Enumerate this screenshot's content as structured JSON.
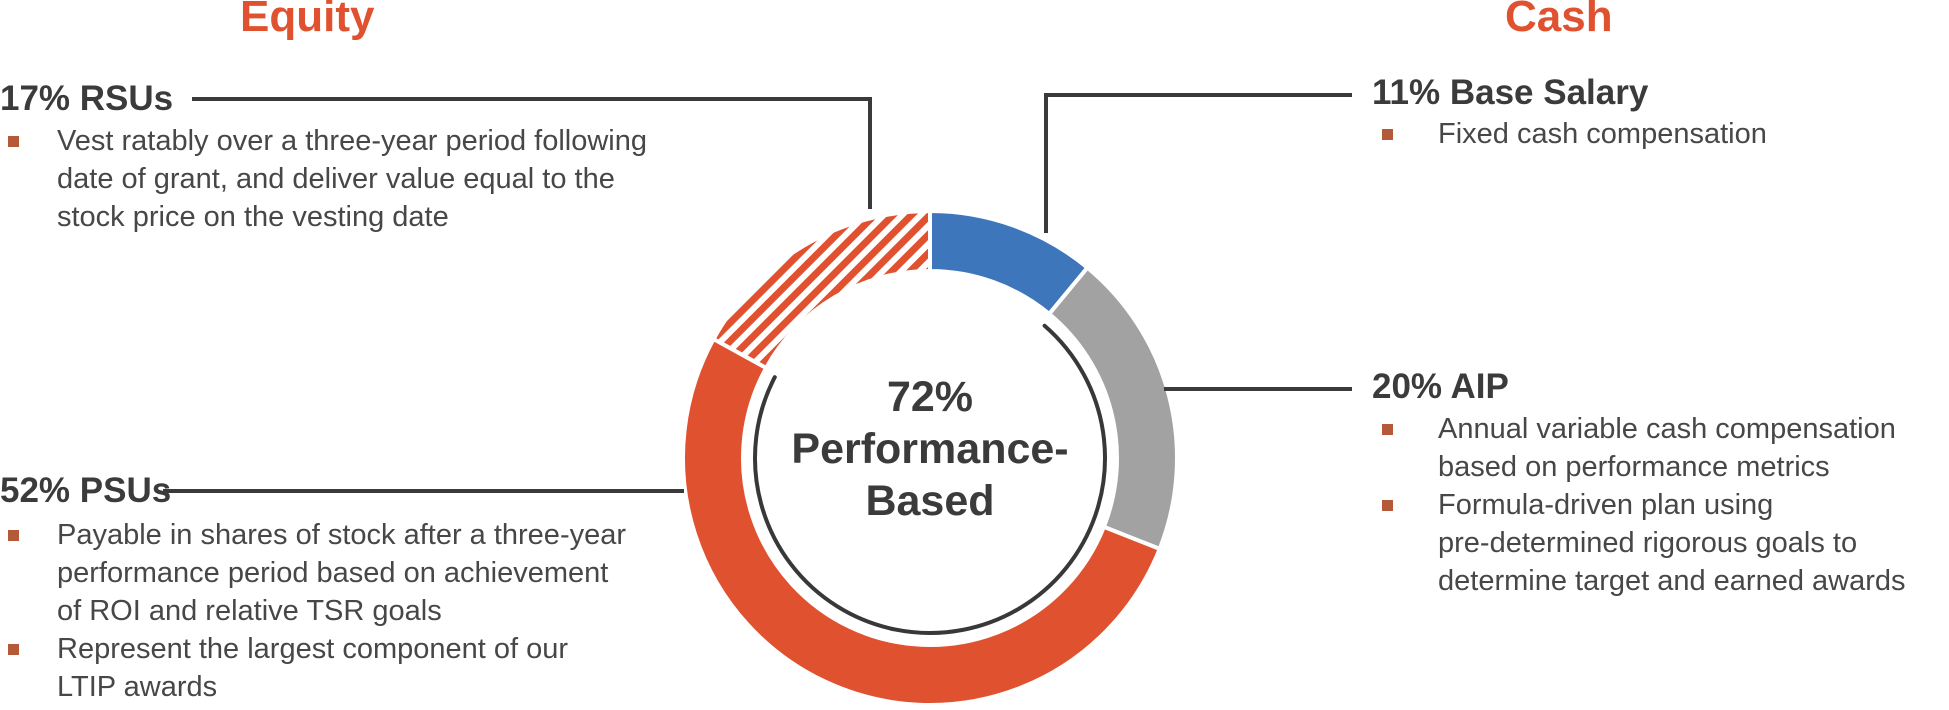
{
  "headers": {
    "equity": "Equity",
    "cash": "Cash"
  },
  "colors": {
    "accent_orange": "#e0512f",
    "blue": "#3e76bc",
    "gray": "#a2a2a2",
    "text_dark": "#3b3b3b",
    "body_text": "#474747",
    "bullet": "#b55a38",
    "connector_line": "#3a3a3a",
    "inner_arc": "#383838"
  },
  "center_label": "72%\nPerformance-\nBased",
  "callouts": {
    "rsus": {
      "title": "17% RSUs",
      "bullets": [
        "Vest ratably over a three-year period following\ndate of grant, and deliver value equal to the\nstock price on the vesting date"
      ]
    },
    "psus": {
      "title": "52% PSUs",
      "bullets": [
        "Payable in shares of stock after a three-year\nperformance period based on achievement\nof ROI and relative TSR goals",
        "Represent the largest component of our\nLTIP awards"
      ]
    },
    "base_salary": {
      "title": "11% Base Salary",
      "bullets": [
        "Fixed cash compensation"
      ]
    },
    "aip": {
      "title": "20% AIP",
      "bullets": [
        "Annual variable cash compensation\nbased on performance metrics",
        "Formula-driven plan using\npre-determined rigorous goals to\ndetermine target and earned awards"
      ]
    }
  },
  "chart_data": {
    "type": "pie",
    "subtype": "donut",
    "title": "",
    "center_label": "72% Performance-Based",
    "start": "top",
    "direction": "clockwise",
    "segments": [
      {
        "label": "Base Salary",
        "value": 11,
        "color": "#3e76bc",
        "pattern": "solid",
        "category": "Cash"
      },
      {
        "label": "AIP",
        "value": 20,
        "color": "#a2a2a2",
        "pattern": "solid",
        "category": "Cash"
      },
      {
        "label": "PSUs",
        "value": 52,
        "color": "#e0512f",
        "pattern": "solid",
        "category": "Equity"
      },
      {
        "label": "RSUs",
        "value": 17,
        "color": "#e0512f",
        "pattern": "diagonal-hatch",
        "category": "Equity"
      }
    ],
    "performance_based_arc": {
      "from_label": "AIP",
      "to_label": "PSUs",
      "value": 72
    }
  }
}
